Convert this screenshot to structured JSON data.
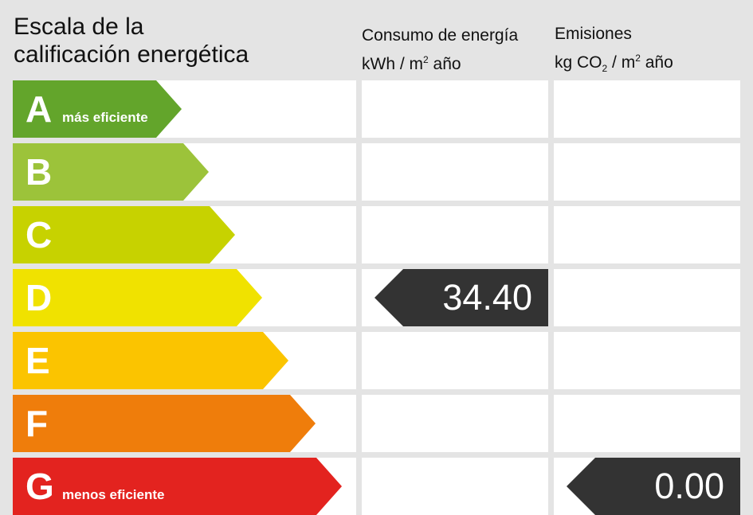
{
  "title": {
    "line1": "Escala de la",
    "line2": "calificación energética"
  },
  "energy_header": {
    "line1": "Consumo de energía",
    "unit_a": "kWh / m",
    "unit_sup": "2",
    "unit_b": " año"
  },
  "emissions_header": {
    "line1": "Emisiones",
    "unit_a": "kg CO",
    "unit_sub": "2",
    "unit_b": " / m",
    "unit_sup": "2",
    "unit_c": " año"
  },
  "ratings": [
    {
      "letter": "A",
      "sublabel": "más eficiente",
      "color": "#63a52b"
    },
    {
      "letter": "B",
      "sublabel": "",
      "color": "#9cc33a"
    },
    {
      "letter": "C",
      "sublabel": "",
      "color": "#c7d200"
    },
    {
      "letter": "D",
      "sublabel": "",
      "color": "#f0e200"
    },
    {
      "letter": "E",
      "sublabel": "",
      "color": "#fbc400"
    },
    {
      "letter": "F",
      "sublabel": "",
      "color": "#ef7d0b"
    },
    {
      "letter": "G",
      "sublabel": "menos eficiente",
      "color": "#e3231f"
    }
  ],
  "energy_consumption": {
    "rating": "D",
    "value": "34.40"
  },
  "emissions": {
    "rating": "G",
    "value": "0.00"
  },
  "marker_color": "#333333"
}
